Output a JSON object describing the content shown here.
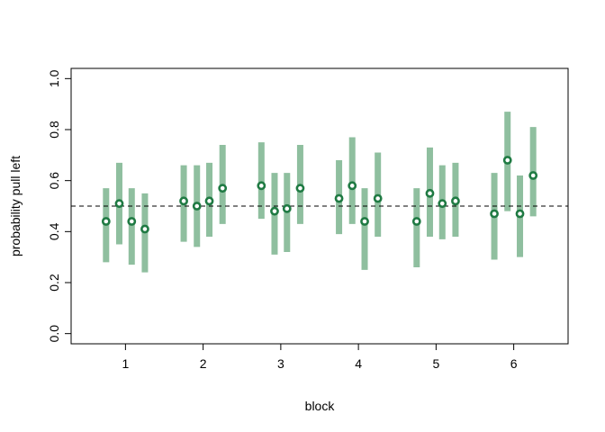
{
  "chart_data": {
    "type": "scatter",
    "xlabel": "block",
    "ylabel": "probability pull left",
    "xlim": [
      0.3,
      6.7
    ],
    "ylim": [
      -0.04,
      1.04
    ],
    "x_ticks": [
      1,
      2,
      3,
      4,
      5,
      6
    ],
    "x_tick_labels": [
      "1",
      "2",
      "3",
      "4",
      "5",
      "6"
    ],
    "y_ticks": [
      0.0,
      0.2,
      0.4,
      0.6,
      0.8,
      1.0
    ],
    "y_tick_labels": [
      "0.0",
      "0.2",
      "0.4",
      "0.6",
      "0.8",
      "1.0"
    ],
    "reference_line": {
      "y": 0.5,
      "style": "dashed"
    },
    "grid": false,
    "legend": "none",
    "colors": {
      "interval": "#8fbf9f",
      "point": "#1f7a43",
      "point_fill": "#ffffff",
      "axis": "#000000"
    },
    "points": [
      {
        "x": 0.75,
        "y": 0.44,
        "low": 0.28,
        "high": 0.57
      },
      {
        "x": 0.92,
        "y": 0.51,
        "low": 0.35,
        "high": 0.67
      },
      {
        "x": 1.08,
        "y": 0.44,
        "low": 0.27,
        "high": 0.57
      },
      {
        "x": 1.25,
        "y": 0.41,
        "low": 0.24,
        "high": 0.55
      },
      {
        "x": 1.75,
        "y": 0.52,
        "low": 0.36,
        "high": 0.66
      },
      {
        "x": 1.92,
        "y": 0.5,
        "low": 0.34,
        "high": 0.66
      },
      {
        "x": 2.08,
        "y": 0.52,
        "low": 0.38,
        "high": 0.67
      },
      {
        "x": 2.25,
        "y": 0.57,
        "low": 0.43,
        "high": 0.74
      },
      {
        "x": 2.75,
        "y": 0.58,
        "low": 0.45,
        "high": 0.75
      },
      {
        "x": 2.92,
        "y": 0.48,
        "low": 0.31,
        "high": 0.63
      },
      {
        "x": 3.08,
        "y": 0.49,
        "low": 0.32,
        "high": 0.63
      },
      {
        "x": 3.25,
        "y": 0.57,
        "low": 0.43,
        "high": 0.74
      },
      {
        "x": 3.75,
        "y": 0.53,
        "low": 0.39,
        "high": 0.68
      },
      {
        "x": 3.92,
        "y": 0.58,
        "low": 0.43,
        "high": 0.77
      },
      {
        "x": 4.08,
        "y": 0.44,
        "low": 0.25,
        "high": 0.57
      },
      {
        "x": 4.25,
        "y": 0.53,
        "low": 0.38,
        "high": 0.71
      },
      {
        "x": 4.75,
        "y": 0.44,
        "low": 0.26,
        "high": 0.57
      },
      {
        "x": 4.92,
        "y": 0.55,
        "low": 0.38,
        "high": 0.73
      },
      {
        "x": 5.08,
        "y": 0.51,
        "low": 0.37,
        "high": 0.66
      },
      {
        "x": 5.25,
        "y": 0.52,
        "low": 0.38,
        "high": 0.67
      },
      {
        "x": 5.75,
        "y": 0.47,
        "low": 0.29,
        "high": 0.63
      },
      {
        "x": 5.92,
        "y": 0.68,
        "low": 0.48,
        "high": 0.87
      },
      {
        "x": 6.08,
        "y": 0.47,
        "low": 0.3,
        "high": 0.62
      },
      {
        "x": 6.25,
        "y": 0.62,
        "low": 0.46,
        "high": 0.81
      }
    ]
  }
}
